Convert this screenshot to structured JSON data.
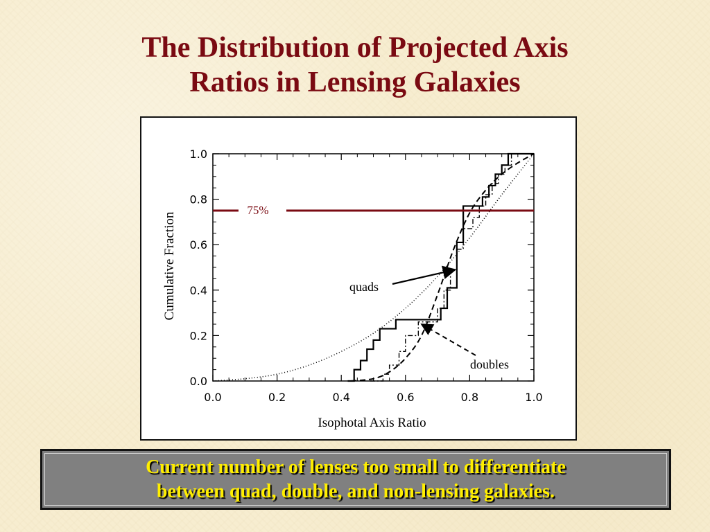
{
  "slide": {
    "title_lines": [
      "The Distribution of Projected Axis",
      "Ratios in Lensing Galaxies"
    ],
    "caption_lines": [
      "Current number of lenses too small to differentiate",
      "between quad, double, and non-lensing galaxies."
    ]
  },
  "colors": {
    "title": "#7a0a12",
    "threshold_line": "#7a0a12",
    "caption_text": "#ffee00",
    "caption_background": "#808080"
  },
  "chart_data": {
    "type": "line",
    "xlabel": "Isophotal Axis Ratio",
    "ylabel": "Cumulative Fraction",
    "xlim": [
      0.0,
      1.0
    ],
    "ylim": [
      0.0,
      1.0
    ],
    "xticks": [
      "0.0",
      "0.2",
      "0.4",
      "0.6",
      "0.8",
      "1.0"
    ],
    "yticks": [
      "0.0",
      "0.2",
      "0.4",
      "0.6",
      "0.8",
      "1.0"
    ],
    "grid": false,
    "series": [
      {
        "style": "solid-step",
        "x": [
          0.42,
          0.44,
          0.46,
          0.48,
          0.5,
          0.52,
          0.57,
          0.71,
          0.73,
          0.76,
          0.78,
          0.82,
          0.84,
          0.86,
          0.88,
          0.9,
          0.92,
          1.0
        ],
        "y": [
          0.0,
          0.05,
          0.09,
          0.14,
          0.18,
          0.23,
          0.27,
          0.32,
          0.41,
          0.61,
          0.77,
          0.77,
          0.81,
          0.86,
          0.91,
          0.95,
          1.0,
          1.0
        ]
      },
      {
        "style": "dash-dot-step",
        "x": [
          0.49,
          0.53,
          0.55,
          0.58,
          0.6,
          0.64,
          0.7,
          0.72,
          0.74,
          0.76,
          0.78,
          0.81,
          0.83,
          0.85,
          0.87,
          0.89,
          0.91,
          0.93,
          1.0
        ],
        "y": [
          0.0,
          0.03,
          0.07,
          0.13,
          0.2,
          0.26,
          0.32,
          0.4,
          0.49,
          0.58,
          0.67,
          0.72,
          0.77,
          0.82,
          0.87,
          0.91,
          0.95,
          1.0,
          1.0
        ]
      },
      {
        "style": "dashed",
        "x": [
          0.43,
          0.5,
          0.55,
          0.6,
          0.65,
          0.7,
          0.75,
          0.8,
          0.85,
          0.9,
          0.95,
          1.0
        ],
        "y": [
          0.0,
          0.01,
          0.04,
          0.1,
          0.2,
          0.38,
          0.58,
          0.74,
          0.84,
          0.91,
          0.96,
          1.0
        ]
      },
      {
        "style": "dotted",
        "x": [
          0.0,
          0.1,
          0.2,
          0.3,
          0.4,
          0.5,
          0.6,
          0.7,
          0.8,
          0.9,
          1.0
        ],
        "y": [
          0.0,
          0.01,
          0.03,
          0.07,
          0.13,
          0.21,
          0.32,
          0.46,
          0.63,
          0.82,
          1.0
        ]
      }
    ],
    "threshold": {
      "y": 0.75,
      "label": "75%"
    },
    "annotations": [
      {
        "text": "quads",
        "style": "solid-arrow",
        "points_to": {
          "x": 0.755,
          "y": 0.49
        }
      },
      {
        "text": "doubles",
        "style": "dashed-arrow",
        "points_to": {
          "x": 0.65,
          "y": 0.25
        }
      }
    ]
  }
}
